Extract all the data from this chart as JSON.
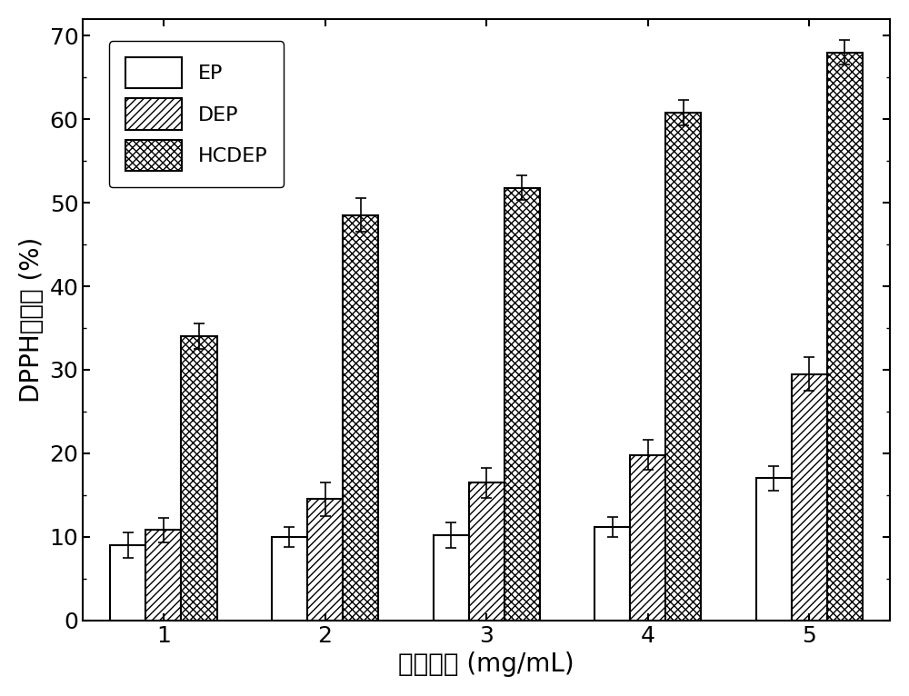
{
  "categories": [
    1,
    2,
    3,
    4,
    5
  ],
  "EP_values": [
    9.0,
    10.0,
    10.2,
    11.2,
    17.0
  ],
  "DEP_values": [
    10.8,
    14.5,
    16.5,
    19.8,
    29.5
  ],
  "HCDEP_values": [
    34.0,
    48.5,
    51.8,
    60.8,
    68.0
  ],
  "EP_errors": [
    1.5,
    1.2,
    1.5,
    1.2,
    1.5
  ],
  "DEP_errors": [
    1.5,
    2.0,
    1.8,
    1.8,
    2.0
  ],
  "HCDEP_errors": [
    1.5,
    2.0,
    1.5,
    1.5,
    1.5
  ],
  "xlabel": "样品浓度 (mg/mL)",
  "ylabel": "DPPH清除率 (%)",
  "ylim": [
    0,
    72
  ],
  "yticks": [
    0,
    10,
    20,
    30,
    40,
    50,
    60,
    70
  ],
  "legend_labels": [
    "EP",
    "DEP",
    "HCDEP"
  ],
  "bar_width": 0.22,
  "background_color": "#ffffff",
  "bar_color": "#ffffff",
  "bar_edgecolor": "#000000"
}
